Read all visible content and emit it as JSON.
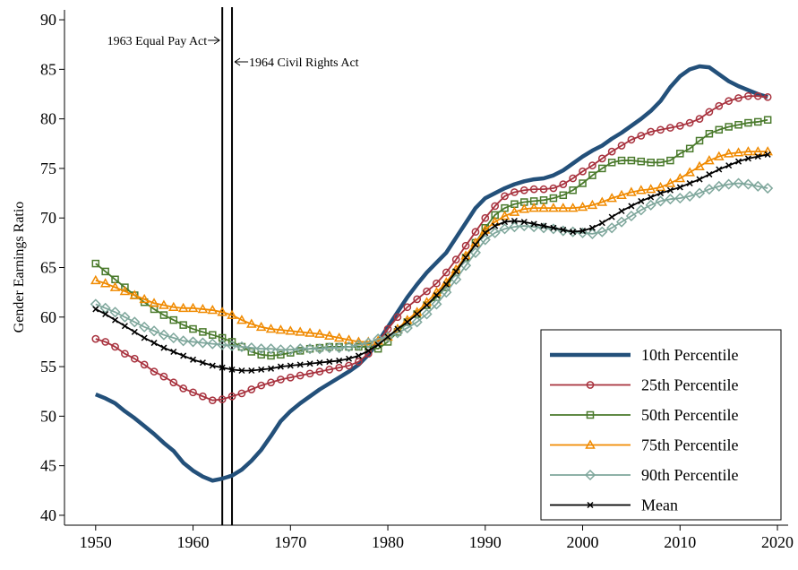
{
  "chart_data": {
    "type": "line",
    "y_label": "Gender Earnings Ratio",
    "x": [
      1950,
      1951,
      1952,
      1953,
      1954,
      1955,
      1956,
      1957,
      1958,
      1959,
      1960,
      1961,
      1962,
      1963,
      1964,
      1965,
      1966,
      1967,
      1968,
      1969,
      1970,
      1971,
      1972,
      1973,
      1974,
      1975,
      1976,
      1977,
      1978,
      1979,
      1980,
      1981,
      1982,
      1983,
      1984,
      1985,
      1986,
      1987,
      1988,
      1989,
      1990,
      1991,
      1992,
      1993,
      1994,
      1995,
      1996,
      1997,
      1998,
      1999,
      2000,
      2001,
      2002,
      2003,
      2004,
      2005,
      2006,
      2007,
      2008,
      2009,
      2010,
      2011,
      2012,
      2013,
      2014,
      2015,
      2016,
      2017,
      2018,
      2019
    ],
    "series": [
      {
        "name": "10th Percentile",
        "color": "#23507a",
        "marker": "none",
        "values": [
          52.2,
          51.8,
          51.3,
          50.5,
          49.8,
          49.0,
          48.2,
          47.3,
          46.5,
          45.3,
          44.5,
          43.9,
          43.5,
          43.7,
          44.0,
          44.6,
          45.5,
          46.6,
          48.0,
          49.5,
          50.5,
          51.3,
          52.0,
          52.7,
          53.3,
          53.9,
          54.5,
          55.2,
          56.2,
          57.5,
          59.0,
          60.5,
          62.0,
          63.3,
          64.5,
          65.5,
          66.5,
          68.0,
          69.5,
          71.0,
          72.0,
          72.5,
          73.0,
          73.4,
          73.7,
          73.9,
          74.0,
          74.3,
          74.8,
          75.5,
          76.2,
          76.8,
          77.3,
          78.0,
          78.6,
          79.3,
          80.0,
          80.8,
          81.8,
          83.2,
          84.3,
          85.0,
          85.3,
          85.2,
          84.5,
          83.8,
          83.3,
          82.9,
          82.5,
          82.2
        ]
      },
      {
        "name": "25th Percentile",
        "color": "#a8323e",
        "marker": "circle",
        "values": [
          57.8,
          57.5,
          57.0,
          56.3,
          55.8,
          55.2,
          54.5,
          54.0,
          53.4,
          52.8,
          52.4,
          52.0,
          51.6,
          51.7,
          52.0,
          52.3,
          52.7,
          53.1,
          53.4,
          53.7,
          53.9,
          54.1,
          54.3,
          54.5,
          54.7,
          54.9,
          55.1,
          55.5,
          56.3,
          57.5,
          58.8,
          60.0,
          61.0,
          61.8,
          62.6,
          63.4,
          64.5,
          65.8,
          67.2,
          68.6,
          70.0,
          71.2,
          72.2,
          72.6,
          72.8,
          72.9,
          72.9,
          73.0,
          73.4,
          74.0,
          74.7,
          75.3,
          76.0,
          76.7,
          77.3,
          77.9,
          78.3,
          78.7,
          78.9,
          79.1,
          79.3,
          79.6,
          80.0,
          80.7,
          81.3,
          81.8,
          82.1,
          82.3,
          82.3,
          82.2
        ]
      },
      {
        "name": "50th Percentile",
        "color": "#4a7a2c",
        "marker": "square",
        "values": [
          65.4,
          64.6,
          63.8,
          63.0,
          62.2,
          61.5,
          60.8,
          60.2,
          59.7,
          59.2,
          58.8,
          58.5,
          58.2,
          57.9,
          57.5,
          57.0,
          56.5,
          56.2,
          56.1,
          56.2,
          56.4,
          56.6,
          56.8,
          56.9,
          57.0,
          57.0,
          57.0,
          57.0,
          57.0,
          56.8,
          57.5,
          58.5,
          59.5,
          60.3,
          61.2,
          62.0,
          63.0,
          64.5,
          66.0,
          67.5,
          69.0,
          70.3,
          71.0,
          71.4,
          71.6,
          71.7,
          71.8,
          72.0,
          72.3,
          72.8,
          73.5,
          74.3,
          75.0,
          75.6,
          75.8,
          75.8,
          75.7,
          75.6,
          75.6,
          75.8,
          76.5,
          77.0,
          77.8,
          78.5,
          78.9,
          79.2,
          79.4,
          79.6,
          79.7,
          79.9
        ]
      },
      {
        "name": "75th Percentile",
        "color": "#f08a00",
        "marker": "triangle",
        "values": [
          63.7,
          63.4,
          63.0,
          62.6,
          62.2,
          61.8,
          61.4,
          61.2,
          61.0,
          60.9,
          60.9,
          60.8,
          60.7,
          60.5,
          60.2,
          59.7,
          59.3,
          59.0,
          58.8,
          58.7,
          58.6,
          58.5,
          58.4,
          58.3,
          58.1,
          57.9,
          57.7,
          57.5,
          57.5,
          57.6,
          58.0,
          58.8,
          59.7,
          60.5,
          61.5,
          62.5,
          63.5,
          64.8,
          66.2,
          67.5,
          68.8,
          69.6,
          70.2,
          70.6,
          70.9,
          71.0,
          71.0,
          71.0,
          71.0,
          71.0,
          71.1,
          71.3,
          71.6,
          72.0,
          72.3,
          72.6,
          72.8,
          72.9,
          73.1,
          73.5,
          74.0,
          74.6,
          75.2,
          75.8,
          76.2,
          76.5,
          76.6,
          76.7,
          76.7,
          76.7
        ]
      },
      {
        "name": "90th Percentile",
        "color": "#7fa79c",
        "marker": "diamond",
        "values": [
          61.3,
          60.9,
          60.5,
          60.0,
          59.5,
          59.0,
          58.6,
          58.2,
          57.9,
          57.6,
          57.5,
          57.4,
          57.3,
          57.2,
          57.1,
          57.0,
          56.9,
          56.8,
          56.8,
          56.7,
          56.7,
          56.8,
          56.8,
          56.8,
          56.9,
          56.9,
          57.0,
          57.2,
          57.4,
          57.8,
          58.0,
          58.4,
          58.9,
          59.5,
          60.3,
          61.3,
          62.5,
          63.8,
          65.2,
          66.5,
          67.8,
          68.5,
          68.9,
          69.1,
          69.2,
          69.1,
          69.0,
          68.9,
          68.7,
          68.6,
          68.5,
          68.4,
          68.6,
          69.0,
          69.6,
          70.2,
          70.8,
          71.3,
          71.7,
          71.9,
          72.0,
          72.2,
          72.5,
          72.9,
          73.2,
          73.4,
          73.5,
          73.4,
          73.2,
          73.0
        ]
      },
      {
        "name": "Mean",
        "color": "#000000",
        "marker": "x",
        "values": [
          60.8,
          60.3,
          59.7,
          59.1,
          58.5,
          57.9,
          57.4,
          56.9,
          56.5,
          56.1,
          55.7,
          55.4,
          55.1,
          54.9,
          54.7,
          54.6,
          54.6,
          54.7,
          54.8,
          55.0,
          55.1,
          55.2,
          55.3,
          55.4,
          55.5,
          55.6,
          55.8,
          56.1,
          56.6,
          57.2,
          58.0,
          58.8,
          59.5,
          60.3,
          61.2,
          62.2,
          63.3,
          64.6,
          66.0,
          67.3,
          68.5,
          69.2,
          69.6,
          69.7,
          69.6,
          69.4,
          69.2,
          69.0,
          68.8,
          68.6,
          68.7,
          69.0,
          69.5,
          70.1,
          70.7,
          71.2,
          71.7,
          72.1,
          72.5,
          72.8,
          73.1,
          73.5,
          73.9,
          74.4,
          74.9,
          75.3,
          75.7,
          76.0,
          76.2,
          76.4
        ]
      }
    ],
    "annotations": [
      {
        "x": 1963,
        "label": "1963 Equal Pay Act"
      },
      {
        "x": 1964,
        "label": "1964 Civil Rights Act"
      }
    ],
    "xlim": [
      1946.8,
      2021.1
    ],
    "xticks": [
      1950,
      1960,
      1970,
      1980,
      1990,
      2000,
      2010,
      2020
    ],
    "ylim": [
      39,
      91
    ],
    "yticks": [
      40,
      45,
      50,
      55,
      60,
      65,
      70,
      75,
      80,
      85,
      90
    ],
    "grid": false,
    "legend": "lower right"
  }
}
